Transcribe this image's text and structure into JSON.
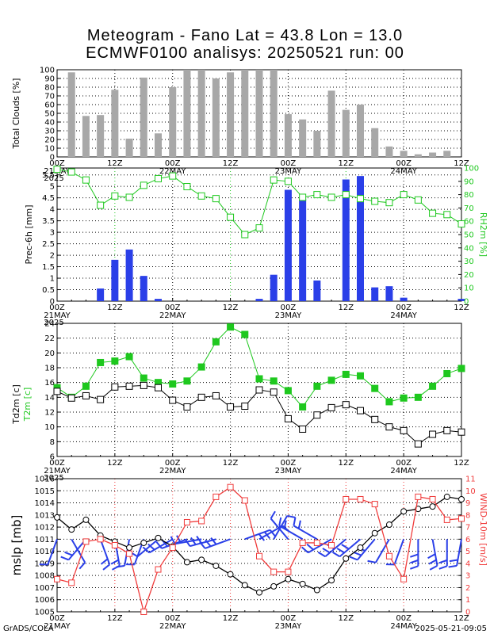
{
  "title_line1": "Meteogram - Fano Lat = 43.8 Lon = 13.0",
  "title_line2": "ECMWF0100 analisys: 20250521 run: 00",
  "footer_left": "GrADS/COLA",
  "footer_right": "2025-05-21-09:05",
  "x_axis": {
    "tick_labels": [
      "00Z",
      "12Z",
      "00Z",
      "12Z",
      "00Z",
      "12Z",
      "00Z",
      "12Z"
    ],
    "date_labels": [
      "21MAY",
      "22MAY",
      "23MAY",
      "24MAY"
    ],
    "year_label": "2025"
  },
  "colors": {
    "bar_gray": "#a8a8a8",
    "bar_blue": "#2a3fe8",
    "green": "#1ec81e",
    "red": "#f03c3c",
    "wind": "#2a3fe8"
  },
  "chart_data": [
    {
      "type": "bar",
      "ylabel": "Total Clouds [%]",
      "ylim": [
        0,
        100
      ],
      "yticks": [
        0,
        10,
        20,
        30,
        40,
        50,
        60,
        70,
        80,
        90,
        100
      ],
      "grid": true,
      "x_hours": [
        3,
        6,
        9,
        12,
        15,
        18,
        21,
        24,
        27,
        30,
        33,
        36,
        39,
        42,
        45,
        48,
        51,
        54,
        57,
        60,
        63,
        66,
        69,
        72,
        75,
        78,
        81,
        84
      ],
      "values": [
        97,
        47,
        48,
        77,
        21,
        91,
        27,
        80,
        100,
        100,
        90,
        97,
        100,
        100,
        100,
        49,
        43,
        30,
        76,
        54,
        60,
        33,
        12,
        7,
        3,
        5,
        7,
        0
      ]
    },
    {
      "type": "bar",
      "ylabel": "Prec-6h [mm]",
      "ylim": [
        0,
        5.8
      ],
      "yticks": [
        0,
        0.5,
        1,
        1.5,
        2,
        2.5,
        3,
        3.5,
        4,
        4.5,
        5,
        5.5
      ],
      "y2label": "RH2m [%]",
      "y2lim": [
        0,
        100
      ],
      "y2ticks": [
        0,
        10,
        20,
        30,
        40,
        50,
        60,
        70,
        80,
        90,
        100
      ],
      "grid": true,
      "x_hours": [
        9,
        12,
        15,
        18,
        21,
        42,
        45,
        48,
        51,
        54,
        60,
        63,
        66,
        69,
        72,
        84
      ],
      "values": [
        0.55,
        1.8,
        2.25,
        1.1,
        0.1,
        0.1,
        1.15,
        4.85,
        4.45,
        0.9,
        5.3,
        5.45,
        0.6,
        0.65,
        0.15,
        0.1
      ],
      "series": [
        {
          "name": "RH2m",
          "color": "#1ec81e",
          "x_hours": [
            0,
            3,
            6,
            9,
            12,
            15,
            18,
            21,
            24,
            27,
            30,
            33,
            36,
            39,
            42,
            45,
            48,
            51,
            54,
            57,
            60,
            63,
            66,
            69,
            72,
            75,
            78,
            81,
            84
          ],
          "values": [
            99,
            97,
            91,
            72,
            79,
            78,
            87,
            92,
            94,
            86,
            79,
            77,
            63,
            50,
            55,
            91,
            90,
            78,
            80,
            78,
            80,
            77,
            75,
            74,
            80,
            76,
            66,
            65,
            58
          ]
        }
      ]
    },
    {
      "type": "line",
      "ylabel": "Td2m [c]",
      "ylabel2": "T2m [c]",
      "ylim": [
        6,
        24
      ],
      "yticks": [
        6,
        8,
        10,
        12,
        14,
        16,
        18,
        20,
        22,
        24
      ],
      "grid": true,
      "series": [
        {
          "name": "T2m",
          "color": "#1ec81e",
          "x_hours": [
            0,
            3,
            6,
            9,
            12,
            15,
            18,
            21,
            24,
            27,
            30,
            33,
            36,
            39,
            42,
            45,
            48,
            51,
            54,
            57,
            60,
            63,
            66,
            69,
            72,
            75,
            78,
            81,
            84
          ],
          "values": [
            15.3,
            14,
            15.5,
            18.7,
            18.9,
            19.5,
            16.6,
            16,
            15.8,
            16.2,
            18.1,
            21.5,
            23.5,
            22.5,
            16.5,
            16.2,
            14.9,
            12.7,
            15.5,
            16.3,
            17.1,
            16.9,
            15.2,
            13.4,
            13.9,
            14,
            15.5,
            17.2,
            17.9
          ]
        },
        {
          "name": "Td2m",
          "color": "#000000",
          "x_hours": [
            0,
            3,
            6,
            9,
            12,
            15,
            18,
            21,
            24,
            27,
            30,
            33,
            36,
            39,
            42,
            45,
            48,
            51,
            54,
            57,
            60,
            63,
            66,
            69,
            72,
            75,
            78,
            81,
            84
          ],
          "values": [
            14.8,
            13.9,
            14.2,
            13.7,
            15.4,
            15.5,
            15.6,
            15.3,
            13.6,
            12.7,
            14,
            14.2,
            12.7,
            12.8,
            15,
            14.7,
            11.1,
            9.7,
            11.6,
            12.6,
            13,
            12.2,
            11,
            10,
            9.5,
            7.7,
            9,
            9.5,
            9.3
          ]
        }
      ]
    },
    {
      "type": "line",
      "ylabel": "mslp [mb]",
      "ylim": [
        1005,
        1016
      ],
      "yticks": [
        1005,
        1006,
        1007,
        1008,
        1009,
        1010,
        1011,
        1012,
        1013,
        1014,
        1015,
        1016
      ],
      "y2label": "WIND-10m [m/s]",
      "y2lim": [
        0,
        11
      ],
      "y2ticks": [
        0,
        1,
        2,
        3,
        4,
        5,
        6,
        7,
        8,
        9,
        10,
        11
      ],
      "grid": true,
      "series": [
        {
          "name": "mslp",
          "color": "#000000",
          "x_hours": [
            0,
            3,
            6,
            9,
            12,
            15,
            18,
            21,
            24,
            27,
            30,
            33,
            36,
            39,
            42,
            45,
            48,
            51,
            54,
            57,
            60,
            63,
            66,
            69,
            72,
            75,
            78,
            81,
            84
          ],
          "values": [
            1012.8,
            1011.8,
            1012.6,
            1011.3,
            1010.8,
            1010.3,
            1010.7,
            1011.1,
            1010.4,
            1009.1,
            1009.3,
            1008.8,
            1008.1,
            1007.2,
            1006.6,
            1007.1,
            1007.7,
            1007.3,
            1006.8,
            1007.6,
            1009.4,
            1010.3,
            1011.5,
            1012.2,
            1013.3,
            1013.5,
            1013.7,
            1014.5,
            1014.3
          ]
        },
        {
          "name": "WIND-10m",
          "color": "#f03c3c",
          "x_hours": [
            0,
            3,
            6,
            9,
            12,
            15,
            18,
            21,
            24,
            27,
            30,
            33,
            36,
            39,
            42,
            45,
            48,
            51,
            54,
            57,
            60,
            63,
            66,
            69,
            72,
            75,
            78,
            81,
            84
          ],
          "values": [
            2.7,
            2.4,
            5.8,
            6,
            5.5,
            4.8,
            0,
            3.5,
            5.3,
            7.4,
            7.5,
            9.5,
            10.3,
            9.2,
            4.6,
            3.3,
            3.3,
            5.7,
            5.7,
            5.5,
            9.3,
            9.3,
            8.9,
            4.6,
            2.7,
            9.5,
            9.3,
            7.6,
            7.7
          ]
        }
      ],
      "wind_barbs": {
        "x_hours": [
          0,
          3,
          6,
          9,
          12,
          15,
          18,
          21,
          24,
          27,
          30,
          33,
          36,
          39,
          42,
          45,
          48,
          51,
          54,
          57,
          60,
          63,
          66,
          69,
          72,
          75,
          78,
          81,
          84
        ],
        "direction_deg": [
          200,
          150,
          220,
          160,
          170,
          190,
          200,
          230,
          240,
          250,
          260,
          255,
          250,
          70,
          60,
          30,
          320,
          300,
          300,
          240,
          230,
          230,
          220,
          210,
          200,
          180,
          170,
          180,
          190
        ]
      }
    }
  ]
}
